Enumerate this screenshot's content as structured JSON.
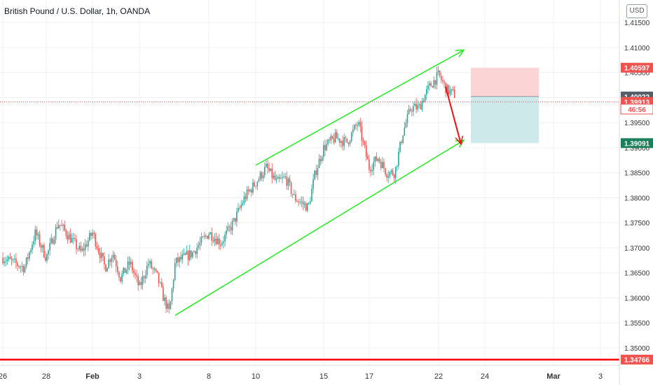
{
  "title": "British Pound / U.S. Dollar, 1h, OANDA",
  "currency_button": "USD",
  "colors": {
    "grid": "#eef0f3",
    "up_candle": "#26a69a",
    "down_candle": "#ef5350",
    "channel_line": "#22ee22",
    "arrow": "#ee1111",
    "stop_zone": "#fbd5d5",
    "target_zone": "#cde9e9",
    "axis_text": "#333333",
    "label_red": "#ef5350",
    "label_grey": "#555d66",
    "label_green": "#1a7f5a",
    "bottom_line": "#ff0000"
  },
  "chart_data": {
    "type": "candlestick",
    "title": "British Pound / U.S. Dollar, 1h, OANDA",
    "timeframe": "1h",
    "source": "OANDA",
    "x_tick_labels": [
      "26",
      "28",
      "Feb",
      "3",
      "8",
      "10",
      "15",
      "17",
      "22",
      "24",
      "Mar",
      "3"
    ],
    "y_tick_labels": [
      "1.41500",
      "1.41000",
      "1.40500",
      "1.40000",
      "1.39500",
      "1.39000",
      "1.38500",
      "1.38000",
      "1.37500",
      "1.37000",
      "1.36500",
      "1.36000",
      "1.35500",
      "1.35000"
    ],
    "ylim": [
      1.3465,
      1.4195
    ],
    "close_path": [
      [
        "26",
        1.368
      ],
      [
        "27",
        1.366
      ],
      [
        "27",
        1.373
      ],
      [
        "28",
        1.368
      ],
      [
        "28",
        1.375
      ],
      [
        "29",
        1.372
      ],
      [
        "29",
        1.369
      ],
      [
        "Feb",
        1.373
      ],
      [
        "1",
        1.366
      ],
      [
        "1",
        1.369
      ],
      [
        "2",
        1.364
      ],
      [
        "2",
        1.367
      ],
      [
        "3",
        1.362
      ],
      [
        "3",
        1.367
      ],
      [
        "4",
        1.364
      ],
      [
        "4",
        1.36
      ],
      [
        "4",
        1.357
      ],
      [
        "5",
        1.367
      ],
      [
        "7",
        1.369
      ],
      [
        "8",
        1.373
      ],
      [
        "8",
        1.371
      ],
      [
        "9",
        1.375
      ],
      [
        "9",
        1.38
      ],
      [
        "10",
        1.383
      ],
      [
        "10",
        1.386
      ],
      [
        "11",
        1.383
      ],
      [
        "11",
        1.384
      ],
      [
        "12",
        1.38
      ],
      [
        "12",
        1.379
      ],
      [
        "13",
        1.378
      ],
      [
        "14",
        1.385
      ],
      [
        "15",
        1.39
      ],
      [
        "15",
        1.392
      ],
      [
        "16",
        1.391
      ],
      [
        "16",
        1.395
      ],
      [
        "17",
        1.386
      ],
      [
        "17",
        1.388
      ],
      [
        "18",
        1.385
      ],
      [
        "18",
        1.385
      ],
      [
        "19",
        1.393
      ],
      [
        "19",
        1.398
      ],
      [
        "20",
        1.398
      ],
      [
        "21",
        1.402
      ],
      [
        "22",
        1.4045
      ],
      [
        "22",
        1.4015
      ],
      [
        "22",
        1.4005
      ]
    ],
    "channel": {
      "upper": {
        "from": [
          "10",
          1.3865
        ],
        "to": [
          "23",
          1.4095
        ]
      },
      "lower": {
        "from": [
          "5",
          1.3565
        ],
        "to": [
          "23",
          1.3915
        ]
      }
    },
    "projection_arrow": {
      "from": [
        "22",
        1.4002
      ],
      "to": [
        "23",
        1.3907
      ]
    },
    "position": {
      "entry": 1.40022,
      "stop": 1.40597,
      "target": 1.39091
    },
    "price_labels": [
      {
        "text": "1.40597",
        "value": 1.40597,
        "style": "red"
      },
      {
        "text": "1.40022",
        "value": 1.40022,
        "style": "grey"
      },
      {
        "text": "1.39913",
        "value": 1.39913,
        "style": "red"
      },
      {
        "text": "46:56",
        "value": 1.3977,
        "style": "countdown"
      },
      {
        "text": "1.39091",
        "value": 1.39091,
        "style": "green"
      },
      {
        "text": "1.34766",
        "value": 1.34766,
        "style": "red"
      }
    ],
    "current_price": 1.39913,
    "countdown": "46:56",
    "horizontal_level": 1.34766,
    "legend": "none",
    "grid": true
  }
}
